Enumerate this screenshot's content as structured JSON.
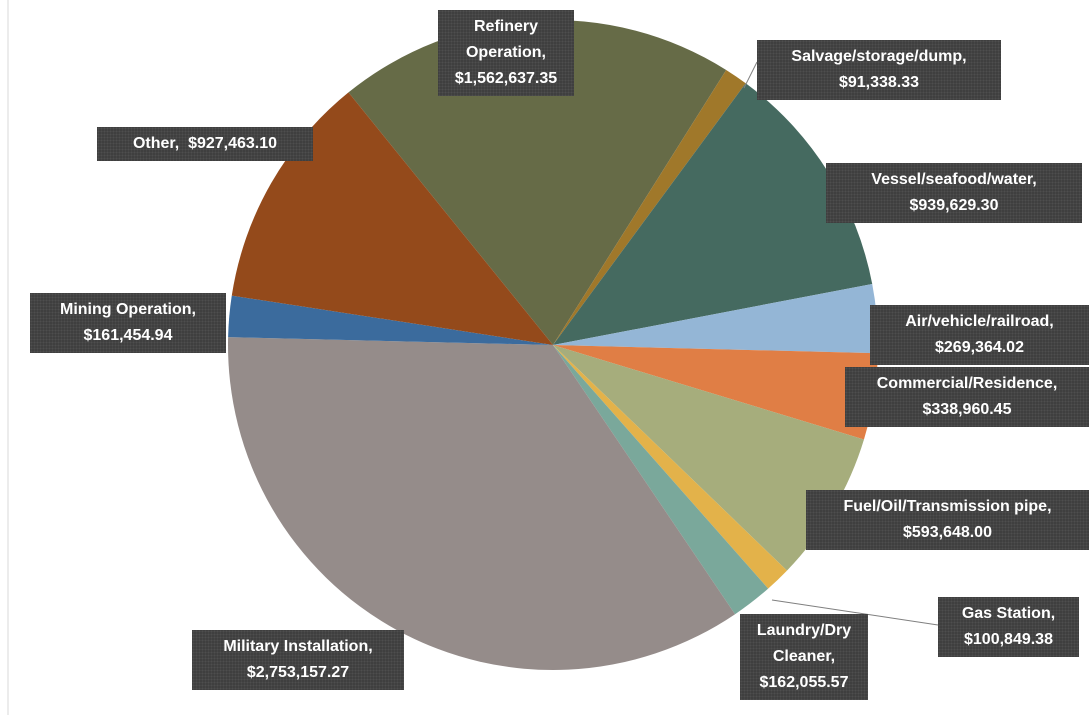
{
  "chart_data": {
    "type": "pie",
    "categories": [
      "Refinery Operation,",
      "Salvage/storage/dump,",
      "Vessel/seafood/water,",
      "Air/vehicle/railroad,",
      "Commercial/Residence,",
      "Fuel/Oil/Transmission pipe,",
      "Gas Station,",
      "Laundry/Dry Cleaner,",
      "Military Installation,",
      "Mining Operation,",
      "Other,"
    ],
    "values": [
      1562637.35,
      91338.33,
      939629.3,
      269364.02,
      338960.45,
      593648.0,
      100849.38,
      162055.57,
      2753157.27,
      161454.94,
      927463.1
    ],
    "value_labels": [
      "$1,562,637.35",
      "$91,338.33",
      "$939,629.30",
      "$269,364.02",
      "$338,960.45",
      "$593,648.00",
      "$100,849.38",
      "$162,055.57",
      "$2,753,157.27",
      "$161,454.94",
      "  $927,463.10"
    ],
    "colors": [
      "#666b47",
      "#a0782a",
      "#456a60",
      "#94b6d6",
      "#e07e45",
      "#a6ad7c",
      "#e3b24a",
      "#7aa89b",
      "#958c8a",
      "#3b6b9d",
      "#944a1b"
    ]
  }
}
